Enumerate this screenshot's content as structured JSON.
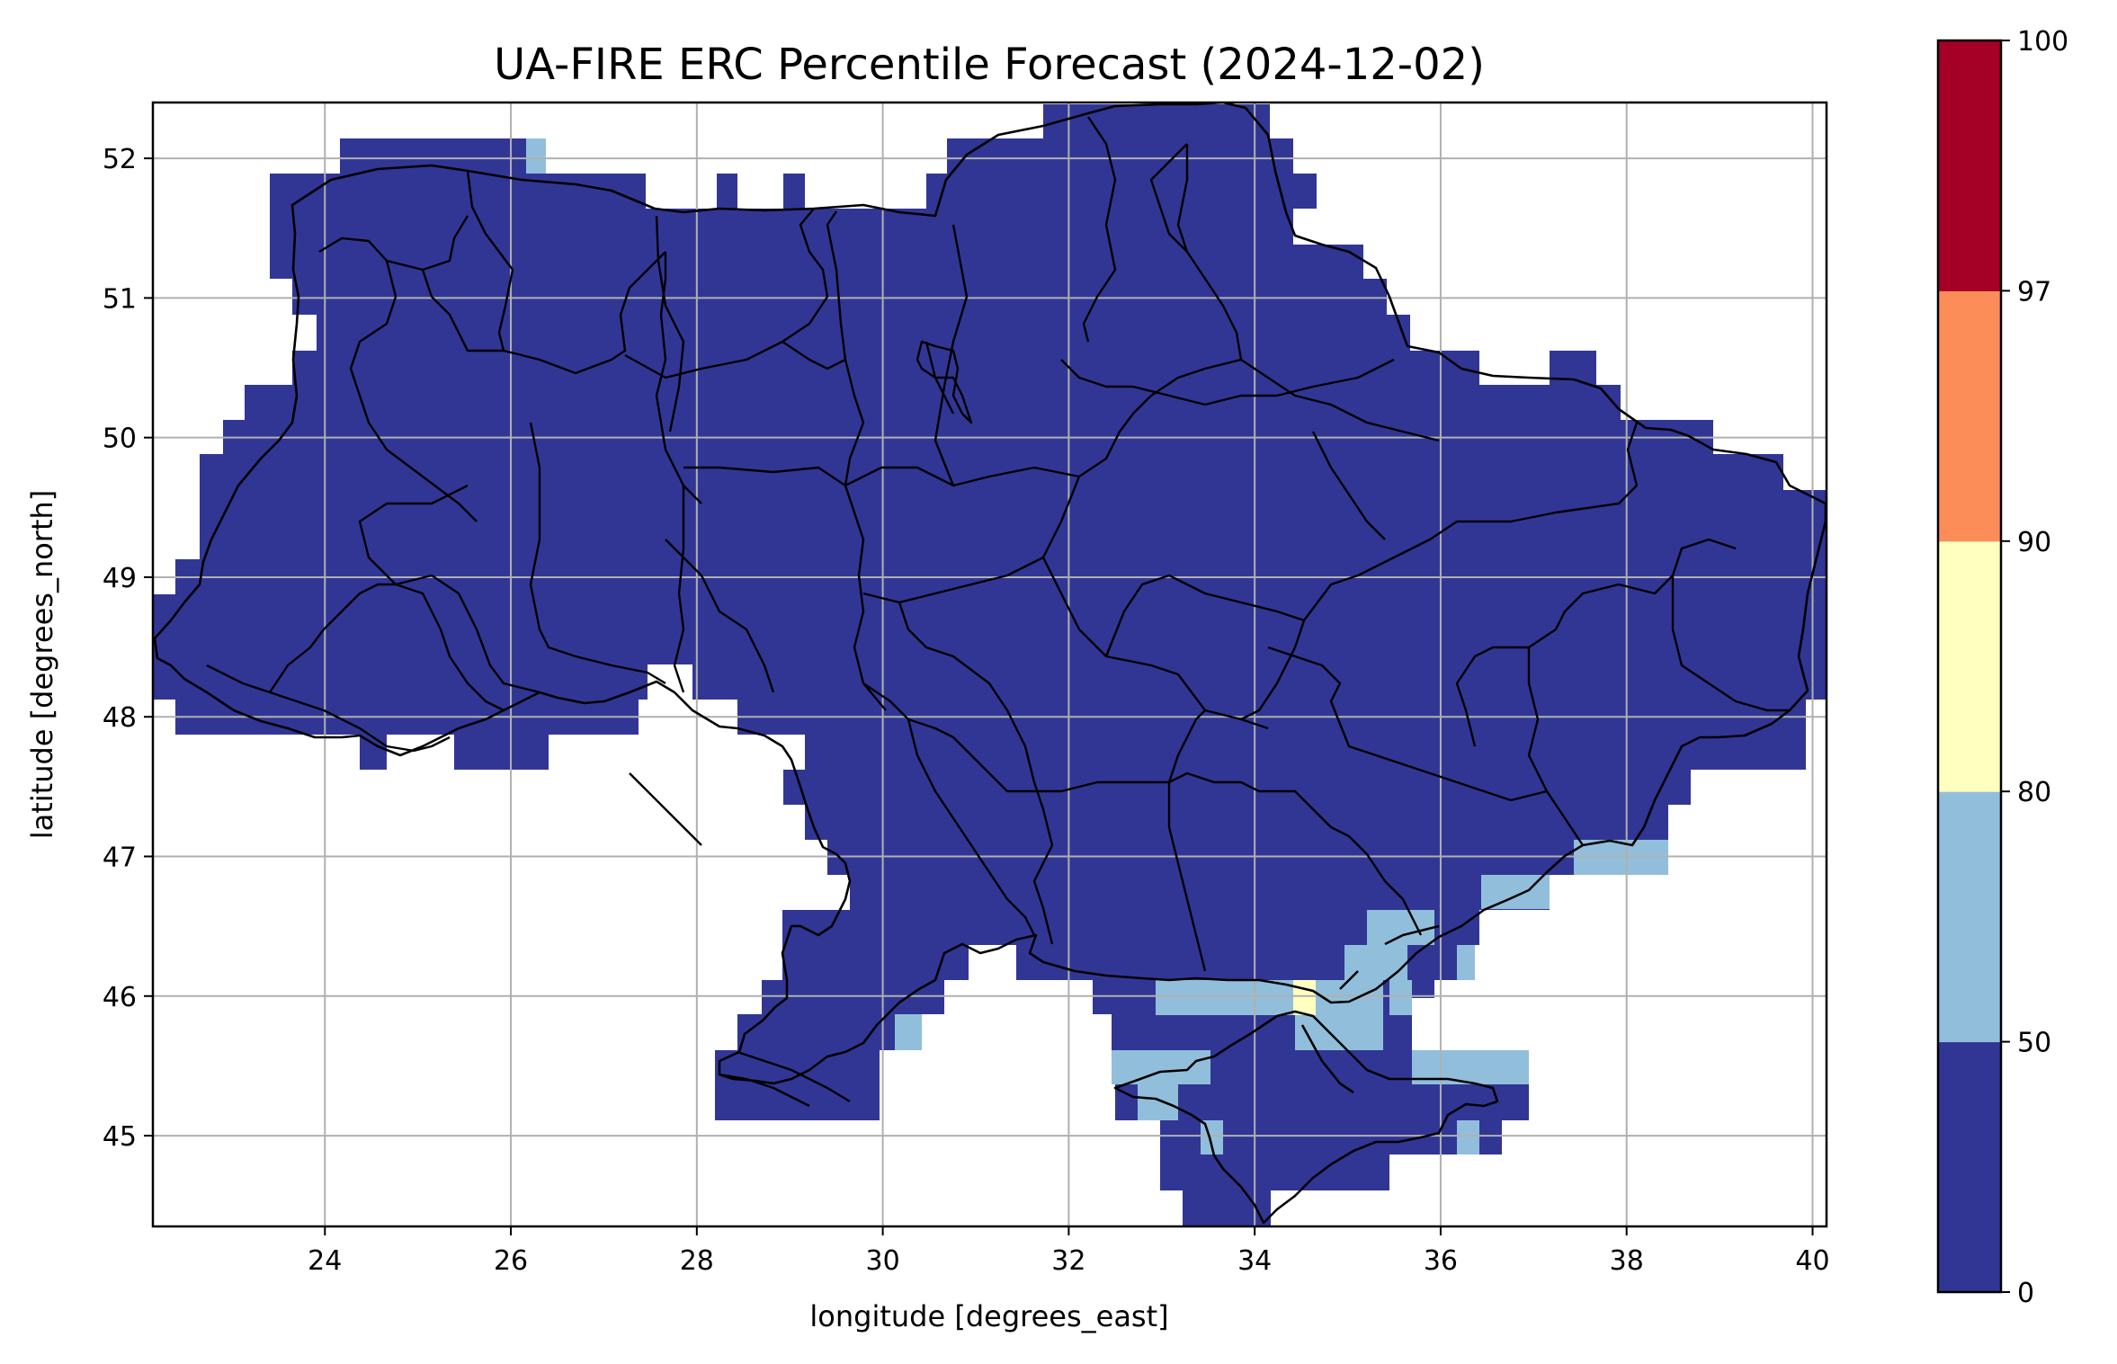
{
  "figure": {
    "title": "UA-FIRE ERC Percentile Forecast (2024-12-02)",
    "xlabel": "longitude [degrees_east]",
    "ylabel": "latitude [degrees_north]"
  },
  "chart_data": {
    "type": "heatmap",
    "title": "UA-FIRE ERC Percentile Forecast (2024-12-02)",
    "xlabel": "longitude [degrees_east]",
    "ylabel": "latitude [degrees_north]",
    "xlim": [
      22.15,
      40.15
    ],
    "ylim": [
      44.35,
      52.4
    ],
    "x_ticks": [
      "24",
      "26",
      "28",
      "30",
      "32",
      "34",
      "36",
      "38",
      "40"
    ],
    "y_ticks": [
      "45",
      "46",
      "47",
      "48",
      "49",
      "50",
      "51",
      "52"
    ],
    "grid": true,
    "colorbar": {
      "bounds": [
        0,
        50,
        80,
        90,
        97,
        100
      ],
      "tick_labels": [
        "0",
        "50",
        "80",
        "90",
        "97",
        "100"
      ],
      "colors": [
        "#313695",
        "#91bfdb",
        "#ffffbf",
        "#fc8d59",
        "#a50026"
      ]
    },
    "dominant_class": "0-50 across nearly all of Ukraine",
    "regions": [
      {
        "class": "50-80",
        "description": "Crimea north coast / Sivash and Kerch areas",
        "lon": [
          32.6,
          37.0
        ],
        "lat": [
          44.9,
          46.2
        ]
      },
      {
        "class": "50-80",
        "description": "Azov Sea north coast near Berdiansk / Mariupol",
        "lon": [
          35.0,
          38.4
        ],
        "lat": [
          46.3,
          47.1
        ]
      },
      {
        "class": "50-80",
        "description": "Danube delta edge",
        "lon": [
          30.2,
          30.4
        ],
        "lat": [
          45.6,
          45.9
        ]
      },
      {
        "class": "80-90",
        "description": "single cell near Henichesk",
        "lon": [
          34.4,
          34.6
        ],
        "lat": [
          45.9,
          46.1
        ]
      }
    ],
    "boundaries": "black outline of national border and oblast boundaries"
  }
}
